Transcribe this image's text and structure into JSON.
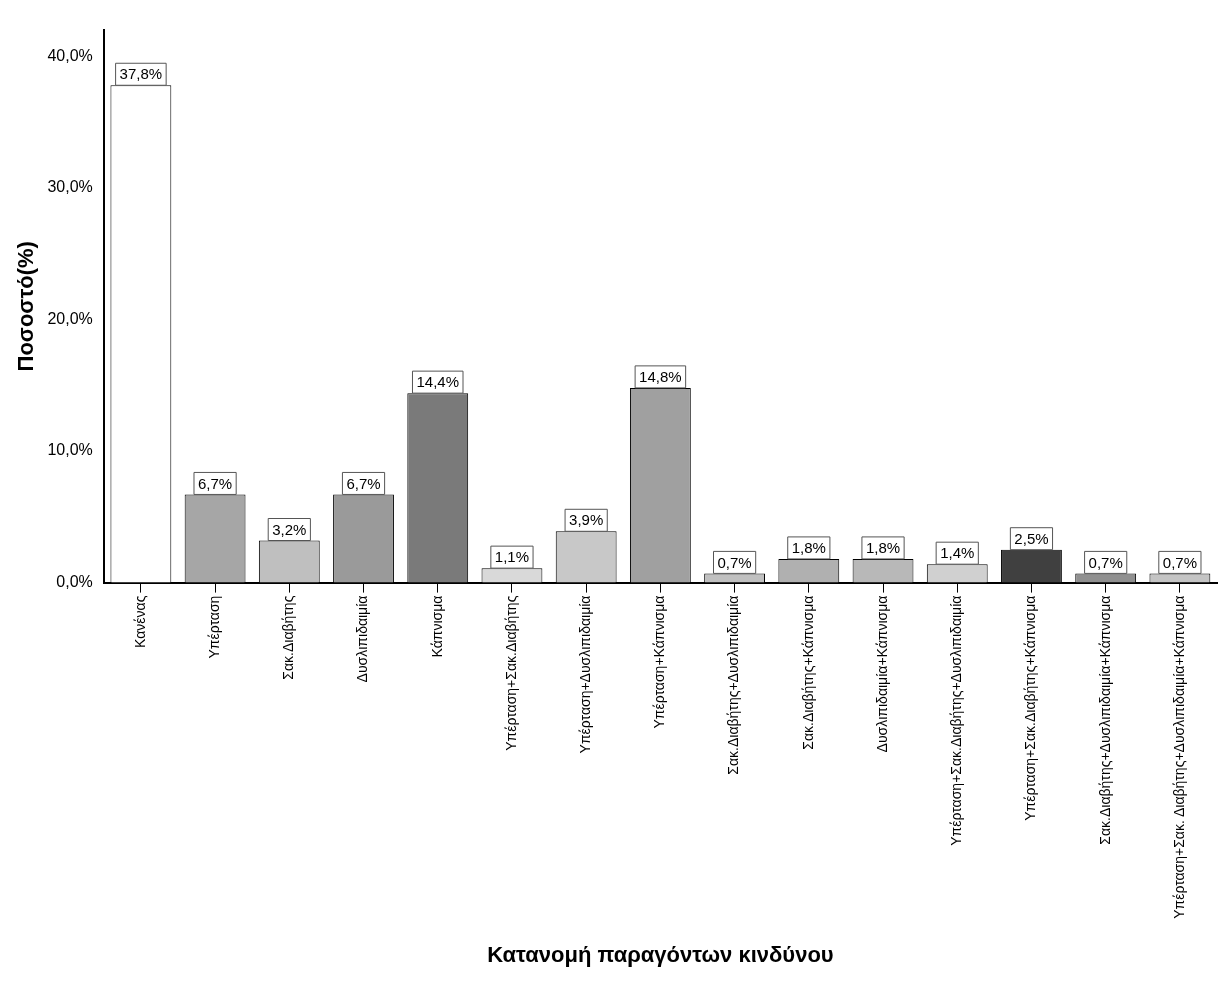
{
  "chart_data": {
    "type": "bar",
    "xlabel": "Κατανομή παραγόντων κινδύνου",
    "ylabel": "Ποσοστό(%)",
    "categories": [
      "Κανένας",
      "Υπέρταση",
      "Σακ.Διαβήτης",
      "Δυσλιπιδαιμία",
      "Κάπνισμα",
      "Υπέρταση+Σακ.Διαβήτης",
      "Υπέρταση+Δυσλιπιδαιμία",
      "Υπέρταση+Κάπνισμα",
      "Σακ.Διαβήτης+Δυσλιπιδαιμία",
      "Σακ.Διαβήτης+Κάπνισμα",
      "Δυσλιπιδαιμία+Κάπνισμα",
      "Υπέρταση+Σακ.Διαβήτης+Δυσλιπιδαιμία",
      "Υπέρταση+Σακ.Διαβήτης+Κάπνισμα",
      "Σακ.Διαβήτης+Δυσλιπιδαιμία+Κάπνισμα",
      "Υπέρταση+Σακ. Διαβήτης+Δυσλιπιδαιμία+Κάπνισμα"
    ],
    "values": [
      37.8,
      6.7,
      3.2,
      6.7,
      14.4,
      1.1,
      3.9,
      14.8,
      0.7,
      1.8,
      1.8,
      1.4,
      2.5,
      0.7,
      0.7
    ],
    "value_labels": [
      "37,8%",
      "6,7%",
      "3,2%",
      "6,7%",
      "14,4%",
      "1,1%",
      "3,9%",
      "14,8%",
      "0,7%",
      "1,8%",
      "1,8%",
      "1,4%",
      "2,5%",
      "0,7%",
      "0,7%"
    ],
    "colors": [
      "#ffffff",
      "#a6a6a6",
      "#bfbfbf",
      "#9a9a9a",
      "#7a7a7a",
      "#d9d9d9",
      "#c8c8c8",
      "#a0a0a0",
      "#c0c0c0",
      "#b0b0b0",
      "#b8b8b8",
      "#d0d0d0",
      "#404040",
      "#909090",
      "#c4c4c4"
    ],
    "ylim": [
      0,
      42
    ],
    "yticks": [
      {
        "value": 0,
        "label": "0,0%"
      },
      {
        "value": 10,
        "label": "10,0%"
      },
      {
        "value": 20,
        "label": "20,0%"
      },
      {
        "value": 30,
        "label": "30,0%"
      },
      {
        "value": 40,
        "label": "40,0%"
      }
    ],
    "grid": false,
    "legend": false
  }
}
